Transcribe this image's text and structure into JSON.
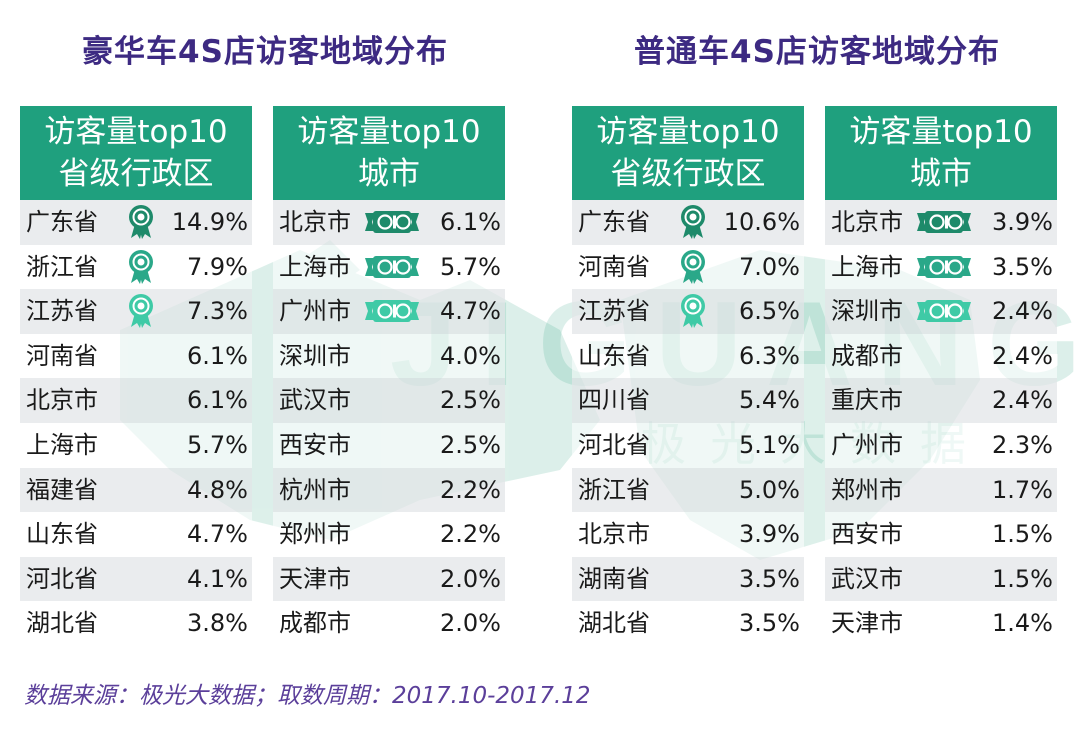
{
  "colors": {
    "title": "#3d2a82",
    "header_bg": "#1fa07e",
    "footer": "#5b3f9a",
    "gold": "#1e8a6a",
    "silver": "#2aa889",
    "bronze": "#3fcaa6"
  },
  "watermark": {
    "brand": "JIGUANG",
    "tagline": "极光大数据"
  },
  "sections": [
    {
      "title": "豪华车4S店访客地域分布"
    },
    {
      "title": "普通车4S店访客地域分布"
    }
  ],
  "tables": [
    {
      "kind": "province",
      "header": [
        "访客量top10",
        "省级行政区"
      ],
      "rows": [
        {
          "name": "广东省",
          "value": "14.9%",
          "rank_icon": "medal-icon"
        },
        {
          "name": "浙江省",
          "value": "7.9%",
          "rank_icon": "medal-icon"
        },
        {
          "name": "江苏省",
          "value": "7.3%",
          "rank_icon": "medal-icon"
        },
        {
          "name": "河南省",
          "value": "6.1%"
        },
        {
          "name": "北京市",
          "value": "6.1%"
        },
        {
          "name": "上海市",
          "value": "5.7%"
        },
        {
          "name": "福建省",
          "value": "4.8%"
        },
        {
          "name": "山东省",
          "value": "4.7%"
        },
        {
          "name": "河北省",
          "value": "4.1%"
        },
        {
          "name": "湖北省",
          "value": "3.8%"
        }
      ]
    },
    {
      "kind": "city",
      "header": [
        "访客量top10",
        "城市"
      ],
      "rows": [
        {
          "name": "北京市",
          "value": "6.1%",
          "rank_icon": "ribbon-icon"
        },
        {
          "name": "上海市",
          "value": "5.7%",
          "rank_icon": "ribbon-icon"
        },
        {
          "name": "广州市",
          "value": "4.7%",
          "rank_icon": "ribbon-icon"
        },
        {
          "name": "深圳市",
          "value": "4.0%"
        },
        {
          "name": "武汉市",
          "value": "2.5%"
        },
        {
          "name": "西安市",
          "value": "2.5%"
        },
        {
          "name": "杭州市",
          "value": "2.2%"
        },
        {
          "name": "郑州市",
          "value": "2.2%"
        },
        {
          "name": "天津市",
          "value": "2.0%"
        },
        {
          "name": "成都市",
          "value": "2.0%"
        }
      ]
    },
    {
      "kind": "province",
      "header": [
        "访客量top10",
        "省级行政区"
      ],
      "rows": [
        {
          "name": "广东省",
          "value": "10.6%",
          "rank_icon": "medal-icon"
        },
        {
          "name": "河南省",
          "value": "7.0%",
          "rank_icon": "medal-icon"
        },
        {
          "name": "江苏省",
          "value": "6.5%",
          "rank_icon": "medal-icon"
        },
        {
          "name": "山东省",
          "value": "6.3%"
        },
        {
          "name": "四川省",
          "value": "5.4%"
        },
        {
          "name": "河北省",
          "value": "5.1%"
        },
        {
          "name": "浙江省",
          "value": "5.0%"
        },
        {
          "name": "北京市",
          "value": "3.9%"
        },
        {
          "name": "湖南省",
          "value": "3.5%"
        },
        {
          "name": "湖北省",
          "value": "3.5%"
        }
      ]
    },
    {
      "kind": "city",
      "header": [
        "访客量top10",
        "城市"
      ],
      "rows": [
        {
          "name": "北京市",
          "value": "3.9%",
          "rank_icon": "ribbon-icon"
        },
        {
          "name": "上海市",
          "value": "3.5%",
          "rank_icon": "ribbon-icon"
        },
        {
          "name": "深圳市",
          "value": "2.4%",
          "rank_icon": "ribbon-icon"
        },
        {
          "name": "成都市",
          "value": "2.4%"
        },
        {
          "name": "重庆市",
          "value": "2.4%"
        },
        {
          "name": "广州市",
          "value": "2.3%"
        },
        {
          "name": "郑州市",
          "value": "1.7%"
        },
        {
          "name": "西安市",
          "value": "1.5%"
        },
        {
          "name": "武汉市",
          "value": "1.5%"
        },
        {
          "name": "天津市",
          "value": "1.4%"
        }
      ]
    }
  ],
  "footer": "数据来源：极光大数据；取数周期：2017.10-2017.12",
  "chart_data": [
    {
      "type": "table",
      "title": "豪华车4S店访客地域分布",
      "header": [
        "访客量top10",
        "省级行政区"
      ],
      "categories": [
        "广东省",
        "浙江省",
        "江苏省",
        "河南省",
        "北京市",
        "上海市",
        "福建省",
        "山东省",
        "河北省",
        "湖北省"
      ],
      "values": [
        14.9,
        7.9,
        7.3,
        6.1,
        6.1,
        5.7,
        4.8,
        4.7,
        4.1,
        3.8
      ]
    },
    {
      "type": "table",
      "title": "豪华车4S店访客地域分布",
      "header": [
        "访客量top10",
        "城市"
      ],
      "categories": [
        "北京市",
        "上海市",
        "广州市",
        "深圳市",
        "武汉市",
        "西安市",
        "杭州市",
        "郑州市",
        "天津市",
        "成都市"
      ],
      "values": [
        6.1,
        5.7,
        4.7,
        4.0,
        2.5,
        2.5,
        2.2,
        2.2,
        2.0,
        2.0
      ]
    },
    {
      "type": "table",
      "title": "普通车4S店访客地域分布",
      "header": [
        "访客量top10",
        "省级行政区"
      ],
      "categories": [
        "广东省",
        "河南省",
        "江苏省",
        "山东省",
        "四川省",
        "河北省",
        "浙江省",
        "北京市",
        "湖南省",
        "湖北省"
      ],
      "values": [
        10.6,
        7.0,
        6.5,
        6.3,
        5.4,
        5.1,
        5.0,
        3.9,
        3.5,
        3.5
      ]
    },
    {
      "type": "table",
      "title": "普通车4S店访客地域分布",
      "header": [
        "访客量top10",
        "城市"
      ],
      "categories": [
        "北京市",
        "上海市",
        "深圳市",
        "成都市",
        "重庆市",
        "广州市",
        "郑州市",
        "西安市",
        "武汉市",
        "天津市"
      ],
      "values": [
        3.9,
        3.5,
        2.4,
        2.4,
        2.4,
        2.3,
        1.7,
        1.5,
        1.5,
        1.4
      ]
    }
  ]
}
